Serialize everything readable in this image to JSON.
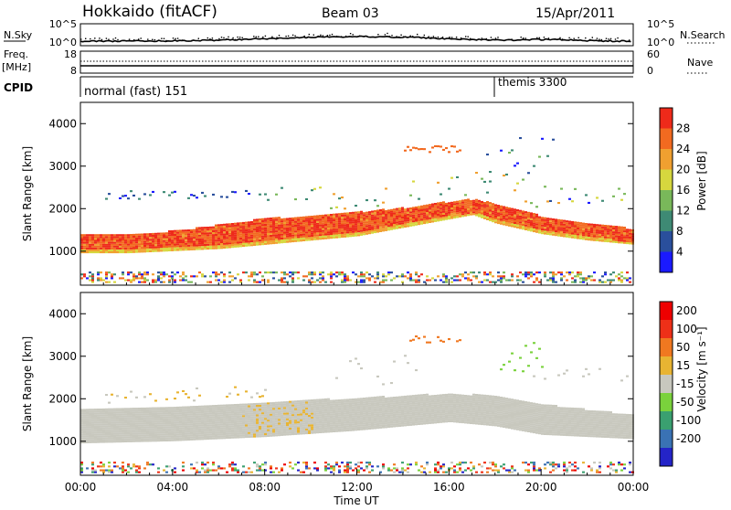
{
  "header": {
    "site": "Hokkaido (fitACF)",
    "beam": "Beam 03",
    "date": "15/Apr/2011"
  },
  "top_panels": {
    "nsky_label": "N.Sky",
    "nsky_ticks": [
      "10^5",
      "10^0"
    ],
    "nsearch_label": "N.Search",
    "nsearch_ticks": [
      "10^5",
      "10^0"
    ],
    "freq_label_1": "Freq.",
    "freq_label_2": "[MHz]",
    "freq_ticks": [
      "18",
      "8"
    ],
    "nave_label": "Nave",
    "nave_ticks": [
      "60",
      "0"
    ],
    "cpid_label": "CPID",
    "cpid_segments": [
      {
        "name": "normal (fast) 151",
        "start_hour": 0
      },
      {
        "name": "themis 3300",
        "start_hour": 18
      }
    ]
  },
  "chart_data": [
    {
      "type": "heatmap",
      "panel": "power",
      "xlabel": "",
      "ylabel": "Slant Range [km]",
      "xlim": [
        0,
        24
      ],
      "ylim": [
        200,
        4500
      ],
      "y_ticks": [
        1000,
        2000,
        3000,
        4000
      ],
      "colorbar": {
        "label": "Power [dB]",
        "ticks": [
          4,
          8,
          12,
          16,
          20,
          24,
          28
        ],
        "colors": [
          "#1a1aff",
          "#2a4f9c",
          "#3e8a74",
          "#79b85a",
          "#d6d73e",
          "#f0a030",
          "#f26a20",
          "#ee2a1a"
        ]
      },
      "series": [
        {
          "name": "main_echo_lower_km",
          "x": [
            0,
            2,
            4,
            6,
            8,
            10,
            12,
            14,
            16,
            17,
            18,
            20,
            22,
            24
          ],
          "values": [
            950,
            950,
            1000,
            1050,
            1150,
            1250,
            1350,
            1550,
            1750,
            1850,
            1650,
            1400,
            1250,
            1150
          ]
        },
        {
          "name": "main_echo_upper_km",
          "x": [
            0,
            2,
            4,
            6,
            8,
            10,
            12,
            14,
            16,
            17,
            18,
            20,
            22,
            24
          ],
          "values": [
            1400,
            1400,
            1450,
            1600,
            1750,
            1800,
            1900,
            2000,
            2150,
            2200,
            2100,
            1800,
            1650,
            1500
          ]
        }
      ]
    },
    {
      "type": "heatmap",
      "panel": "velocity",
      "xlabel": "Time UT",
      "ylabel": "Slant Range [km]",
      "xlim": [
        0,
        24
      ],
      "ylim": [
        200,
        4500
      ],
      "x_ticks": [
        "00:00",
        "04:00",
        "08:00",
        "12:00",
        "16:00",
        "20:00",
        "00:00"
      ],
      "y_ticks": [
        1000,
        2000,
        3000,
        4000
      ],
      "colorbar": {
        "label": "Velocity [m s⁻¹]",
        "ticks": [
          "200",
          "100",
          "50",
          "15",
          "-15",
          "-50",
          "-100",
          "-200"
        ],
        "colors": [
          "#2424c8",
          "#3a72b4",
          "#3aa070",
          "#7ad23c",
          "#c8c8be",
          "#e8b432",
          "#f07820",
          "#ee3018",
          "#ee0000"
        ]
      },
      "series": [
        {
          "name": "ground_scatter_lower_km",
          "x": [
            0,
            4,
            8,
            12,
            16,
            18,
            20,
            24
          ],
          "values": [
            950,
            1000,
            1100,
            1250,
            1450,
            1350,
            1150,
            1050
          ]
        },
        {
          "name": "ground_scatter_upper_km",
          "x": [
            0,
            4,
            8,
            12,
            16,
            18,
            20,
            24
          ],
          "values": [
            1750,
            1800,
            1900,
            2000,
            2100,
            2050,
            1850,
            1600
          ]
        }
      ]
    }
  ]
}
